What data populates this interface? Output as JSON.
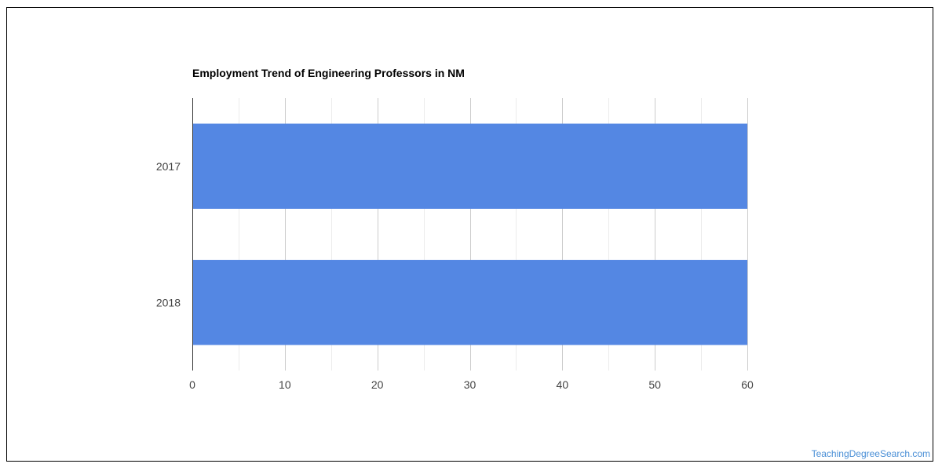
{
  "chart_data": {
    "type": "bar",
    "orientation": "horizontal",
    "title": "Employment Trend of Engineering Professors in NM",
    "xlabel": "",
    "ylabel": "",
    "categories": [
      "2017",
      "2018"
    ],
    "values": [
      60,
      60
    ],
    "xlim": [
      0,
      60
    ],
    "ticks": [
      0,
      10,
      20,
      30,
      40,
      50,
      60
    ],
    "grid": true,
    "legend": "none",
    "bar_color": "#5487e3"
  },
  "watermark": "TeachingDegreeSearch.com"
}
